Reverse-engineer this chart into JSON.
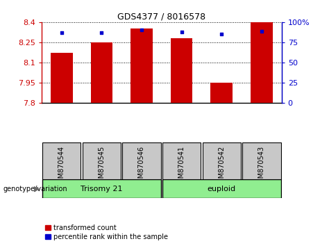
{
  "title": "GDS4377 / 8016578",
  "samples": [
    "GSM870544",
    "GSM870545",
    "GSM870546",
    "GSM870541",
    "GSM870542",
    "GSM870543"
  ],
  "transformed_counts": [
    8.17,
    8.25,
    8.35,
    8.28,
    7.95,
    8.4
  ],
  "percentile_ranks": [
    87,
    87,
    90,
    88,
    85,
    89
  ],
  "ylim_left": [
    7.8,
    8.4
  ],
  "ylim_right": [
    0,
    100
  ],
  "yticks_left": [
    7.8,
    7.95,
    8.1,
    8.25,
    8.4
  ],
  "yticks_right": [
    0,
    25,
    50,
    75,
    100
  ],
  "bar_color": "#CC0000",
  "dot_color": "#0000CC",
  "group1_label": "Trisomy 21",
  "group2_label": "euploid",
  "group1_indices": [
    0,
    1,
    2
  ],
  "group2_indices": [
    3,
    4,
    5
  ],
  "group_bg_color": "#90EE90",
  "genotype_label": "genotype/variation",
  "legend_red_label": "transformed count",
  "legend_blue_label": "percentile rank within the sample",
  "tick_bg_color": "#C8C8C8",
  "bar_width": 0.55,
  "title_fontsize": 9,
  "axis_fontsize": 8,
  "sample_fontsize": 7,
  "group_fontsize": 8,
  "legend_fontsize": 7
}
